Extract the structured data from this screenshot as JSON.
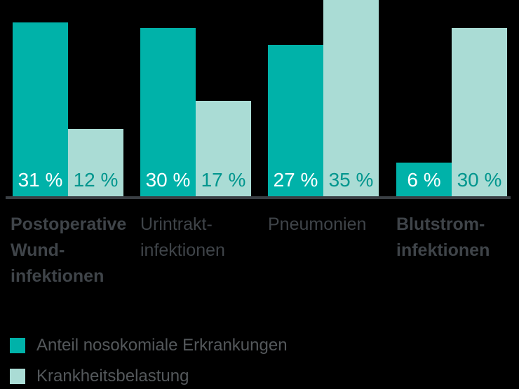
{
  "colors": {
    "background": "#000000",
    "bar_dark_teal": "#00b2a9",
    "bar_light_teal": "#aadcd5",
    "axis_line": "#3a3f44",
    "category_text": "#3f4449",
    "legend_text": "#54585b",
    "value_label_on_dark": "#ffffff",
    "value_label_on_light": "#00968e"
  },
  "chart_data": {
    "type": "bar",
    "title": "",
    "xlabel": "",
    "ylabel": "",
    "unit": "%",
    "ylim": [
      0,
      35
    ],
    "grid": false,
    "legend_position": "bottom-left",
    "categories": [
      "Postoperative Wund-infektionen",
      "Urintrakt-infektionen",
      "Pneumonien",
      "Blutstrom-infektionen"
    ],
    "series": [
      {
        "name": "Anteil nosokomiale Erkrankungen",
        "values": [
          31,
          30,
          27,
          6
        ],
        "value_labels": [
          "31 %",
          "30 %",
          "27 %",
          "6 %"
        ],
        "color": "#00b2a9",
        "value_label_color": "#ffffff"
      },
      {
        "name": "Krankheitsbelastung",
        "values": [
          12,
          17,
          35,
          30
        ],
        "value_labels": [
          "12 %",
          "17 %",
          "35 %",
          "30 %"
        ],
        "color": "#aadcd5",
        "value_label_color": "#00968e"
      }
    ]
  },
  "category_labels": [
    {
      "lines": "Postoperative\nWund-\ninfektionen",
      "bold": true
    },
    {
      "lines": "Urintrakt-\ninfektionen",
      "bold": false
    },
    {
      "lines": "Pneumonien",
      "bold": false
    },
    {
      "lines": "Blutstrom-\ninfektionen",
      "bold": true
    }
  ],
  "legend": {
    "items": [
      {
        "label": "Anteil nosokomiale Erkrankungen",
        "color": "#00b2a9"
      },
      {
        "label": "Krankheitsbelastung",
        "color": "#aadcd5"
      }
    ]
  }
}
